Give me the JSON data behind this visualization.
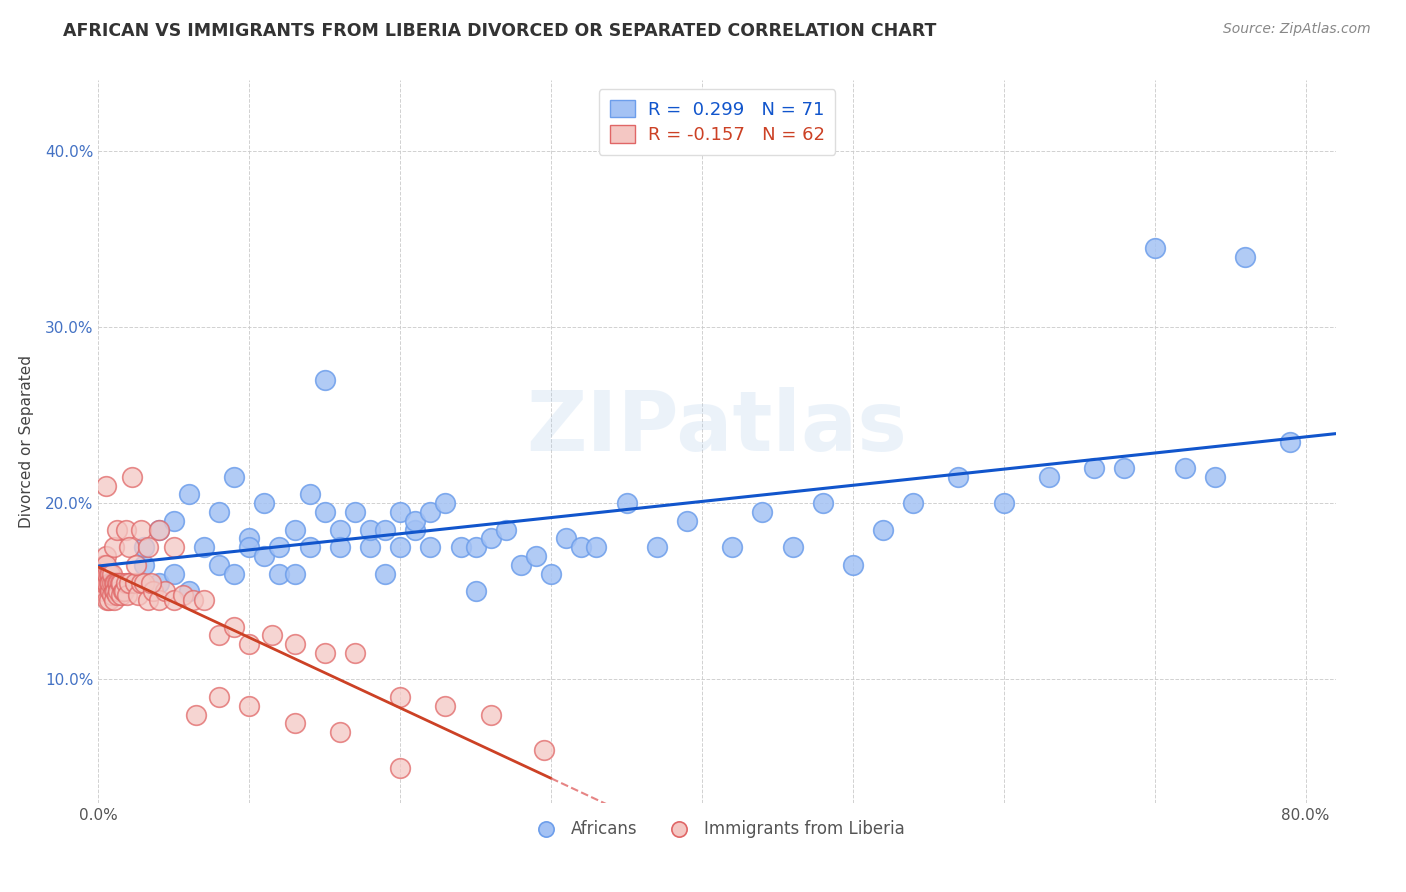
{
  "title": "AFRICAN VS IMMIGRANTS FROM LIBERIA DIVORCED OR SEPARATED CORRELATION CHART",
  "source": "Source: ZipAtlas.com",
  "ylabel": "Divorced or Separated",
  "xlim_min": 0.0,
  "xlim_max": 0.82,
  "ylim_min": 0.03,
  "ylim_max": 0.44,
  "xticks": [
    0.0,
    0.1,
    0.2,
    0.3,
    0.4,
    0.5,
    0.6,
    0.7,
    0.8
  ],
  "yticks": [
    0.1,
    0.2,
    0.3,
    0.4
  ],
  "ytick_labels": [
    "10.0%",
    "20.0%",
    "30.0%",
    "40.0%"
  ],
  "xtick_labels_show": [
    "0.0%",
    "80.0%"
  ],
  "watermark": "ZIPatlas",
  "blue_color": "#a4c2f4",
  "pink_color": "#f4c7c3",
  "blue_scatter_color": "#6d9eeb",
  "pink_scatter_color": "#e06666",
  "blue_line_color": "#1155cc",
  "pink_solid_color": "#cc4125",
  "pink_dash_color": "#e06666",
  "background_color": "#ffffff",
  "africans_x": [
    0.02,
    0.03,
    0.03,
    0.04,
    0.04,
    0.05,
    0.05,
    0.06,
    0.06,
    0.07,
    0.08,
    0.08,
    0.09,
    0.09,
    0.1,
    0.1,
    0.11,
    0.11,
    0.12,
    0.12,
    0.13,
    0.13,
    0.14,
    0.14,
    0.15,
    0.15,
    0.16,
    0.16,
    0.17,
    0.18,
    0.18,
    0.19,
    0.19,
    0.2,
    0.2,
    0.21,
    0.21,
    0.22,
    0.22,
    0.23,
    0.24,
    0.25,
    0.25,
    0.26,
    0.27,
    0.28,
    0.29,
    0.3,
    0.31,
    0.32,
    0.33,
    0.35,
    0.37,
    0.39,
    0.42,
    0.44,
    0.46,
    0.48,
    0.5,
    0.52,
    0.54,
    0.57,
    0.6,
    0.63,
    0.66,
    0.68,
    0.7,
    0.72,
    0.74,
    0.76,
    0.79
  ],
  "africans_y": [
    0.155,
    0.165,
    0.175,
    0.155,
    0.185,
    0.16,
    0.19,
    0.15,
    0.205,
    0.175,
    0.165,
    0.195,
    0.16,
    0.215,
    0.18,
    0.175,
    0.17,
    0.2,
    0.175,
    0.16,
    0.185,
    0.16,
    0.205,
    0.175,
    0.195,
    0.27,
    0.185,
    0.175,
    0.195,
    0.175,
    0.185,
    0.185,
    0.16,
    0.195,
    0.175,
    0.185,
    0.19,
    0.195,
    0.175,
    0.2,
    0.175,
    0.175,
    0.15,
    0.18,
    0.185,
    0.165,
    0.17,
    0.16,
    0.18,
    0.175,
    0.175,
    0.2,
    0.175,
    0.19,
    0.175,
    0.195,
    0.175,
    0.2,
    0.165,
    0.185,
    0.2,
    0.215,
    0.2,
    0.215,
    0.22,
    0.22,
    0.345,
    0.22,
    0.215,
    0.34,
    0.235
  ],
  "liberia_x": [
    0.002,
    0.003,
    0.003,
    0.004,
    0.004,
    0.005,
    0.005,
    0.005,
    0.006,
    0.006,
    0.006,
    0.007,
    0.007,
    0.007,
    0.008,
    0.008,
    0.008,
    0.009,
    0.009,
    0.009,
    0.01,
    0.01,
    0.01,
    0.011,
    0.011,
    0.012,
    0.012,
    0.013,
    0.013,
    0.014,
    0.015,
    0.015,
    0.016,
    0.017,
    0.018,
    0.019,
    0.02,
    0.022,
    0.024,
    0.026,
    0.028,
    0.03,
    0.033,
    0.036,
    0.04,
    0.044,
    0.05,
    0.056,
    0.063,
    0.07,
    0.08,
    0.09,
    0.1,
    0.115,
    0.13,
    0.15,
    0.17,
    0.2,
    0.23,
    0.26,
    0.295,
    0.035
  ],
  "liberia_y": [
    0.155,
    0.16,
    0.15,
    0.165,
    0.155,
    0.17,
    0.155,
    0.165,
    0.155,
    0.16,
    0.145,
    0.16,
    0.155,
    0.145,
    0.16,
    0.15,
    0.155,
    0.155,
    0.148,
    0.16,
    0.15,
    0.155,
    0.145,
    0.155,
    0.15,
    0.155,
    0.148,
    0.155,
    0.15,
    0.155,
    0.148,
    0.155,
    0.15,
    0.15,
    0.155,
    0.148,
    0.155,
    0.215,
    0.155,
    0.148,
    0.155,
    0.155,
    0.145,
    0.15,
    0.145,
    0.15,
    0.145,
    0.148,
    0.145,
    0.145,
    0.125,
    0.13,
    0.12,
    0.125,
    0.12,
    0.115,
    0.115,
    0.09,
    0.085,
    0.08,
    0.06,
    0.155
  ],
  "liberia_extra_x": [
    0.005,
    0.01,
    0.012,
    0.018,
    0.02,
    0.025,
    0.028,
    0.033,
    0.04,
    0.05,
    0.065,
    0.08,
    0.1,
    0.13,
    0.16,
    0.2
  ],
  "liberia_extra_y": [
    0.21,
    0.175,
    0.185,
    0.185,
    0.175,
    0.165,
    0.185,
    0.175,
    0.185,
    0.175,
    0.08,
    0.09,
    0.085,
    0.075,
    0.07,
    0.05
  ],
  "legend_blue_label": "R =  0.299   N = 71",
  "legend_pink_label": "R = -0.157   N = 62"
}
